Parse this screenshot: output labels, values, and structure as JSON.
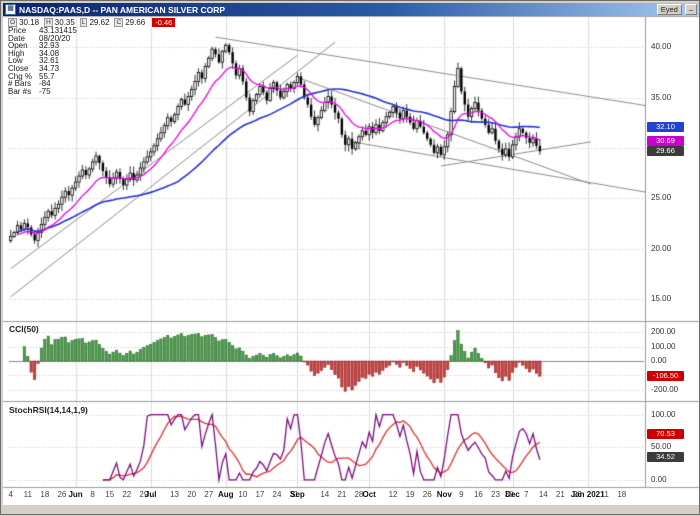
{
  "window": {
    "title": "NASDAQ:PAAS,D -- PAN AMERICAN SILVER CORP",
    "controls": [
      {
        "label": "Eyed"
      },
      {
        "label": "–"
      }
    ]
  },
  "quote_panel": {
    "ohlc": [
      {
        "k": "O",
        "v": "30.18"
      },
      {
        "k": "H",
        "v": "30.35"
      },
      {
        "k": "L",
        "v": "29.62"
      },
      {
        "k": "C",
        "v": "29.66"
      }
    ],
    "change": "-0.46",
    "rows": [
      {
        "label": "Price",
        "value": "43.131415"
      },
      {
        "label": "Date",
        "value": "08/20/20"
      },
      {
        "label": "Open",
        "value": "32.93"
      },
      {
        "label": "High",
        "value": "34.08"
      },
      {
        "label": "Low",
        "value": "32.61"
      },
      {
        "label": "Close",
        "value": "34.73"
      },
      {
        "label": "Chg %",
        "value": "55.7"
      },
      {
        "label": "# Bars",
        "value": "-84"
      },
      {
        "label": "Bar #s",
        "value": "-75"
      }
    ]
  },
  "panels": {
    "price": {
      "axis_labels": [
        {
          "text": "40.00",
          "value": 40
        },
        {
          "text": "35.00",
          "value": 35
        },
        {
          "text": "30.00",
          "value": 30
        },
        {
          "text": "25.00",
          "value": 25
        },
        {
          "text": "20.00",
          "value": 20
        },
        {
          "text": "15.00",
          "value": 15
        }
      ],
      "badges": [
        {
          "text": "32.10",
          "value": 32.1,
          "color": "#2244cc"
        },
        {
          "text": "30.69",
          "value": 30.69,
          "color": "#cc00cc"
        },
        {
          "text": "29.66",
          "value": 29.66,
          "color": "#3c3c3c"
        }
      ]
    },
    "cci": {
      "label": "CCI(50)",
      "axis_labels": [
        {
          "text": "200.00",
          "value": 200
        },
        {
          "text": "100.00",
          "value": 100
        },
        {
          "text": "0.00",
          "value": 0
        },
        {
          "text": "-100.00",
          "value": -100
        },
        {
          "text": "-200.00",
          "value": -200
        }
      ],
      "badges": [
        {
          "text": "-106.50",
          "value": -106.5,
          "color": "#cc0000"
        }
      ]
    },
    "stoch": {
      "label": "StochRSI(14,14,1,9)",
      "axis_labels": [
        {
          "text": "100.00",
          "value": 100
        },
        {
          "text": "50.00",
          "value": 50
        },
        {
          "text": "0.00",
          "value": 0
        }
      ],
      "badges": [
        {
          "text": "70.53",
          "value": 70.53,
          "color": "#cc0000"
        },
        {
          "text": "34.52",
          "value": 34.52,
          "color": "#3c3c3c"
        }
      ]
    }
  },
  "xaxis": {
    "labels": [
      {
        "text": "4",
        "i": 0
      },
      {
        "text": "11",
        "i": 5
      },
      {
        "text": "18",
        "i": 10
      },
      {
        "text": "26",
        "i": 15
      },
      {
        "text": "Jun",
        "i": 19
      },
      {
        "text": "8",
        "i": 24
      },
      {
        "text": "15",
        "i": 29
      },
      {
        "text": "22",
        "i": 34
      },
      {
        "text": "29",
        "i": 39
      },
      {
        "text": "Jul",
        "i": 41
      },
      {
        "text": "13",
        "i": 48
      },
      {
        "text": "20",
        "i": 53
      },
      {
        "text": "27",
        "i": 58
      },
      {
        "text": "Aug",
        "i": 63
      },
      {
        "text": "10",
        "i": 68
      },
      {
        "text": "17",
        "i": 73
      },
      {
        "text": "24",
        "i": 78
      },
      {
        "text": "31",
        "i": 83
      },
      {
        "text": "Sep",
        "i": 84
      },
      {
        "text": "14",
        "i": 92
      },
      {
        "text": "21",
        "i": 97
      },
      {
        "text": "28",
        "i": 102
      },
      {
        "text": "Oct",
        "i": 105
      },
      {
        "text": "12",
        "i": 112
      },
      {
        "text": "19",
        "i": 117
      },
      {
        "text": "26",
        "i": 122
      },
      {
        "text": "Nov",
        "i": 127
      },
      {
        "text": "9",
        "i": 132
      },
      {
        "text": "16",
        "i": 137
      },
      {
        "text": "23",
        "i": 142
      },
      {
        "text": "30",
        "i": 146
      },
      {
        "text": "Dec",
        "i": 147
      },
      {
        "text": "7",
        "i": 151
      },
      {
        "text": "14",
        "i": 156
      },
      {
        "text": "21",
        "i": 161
      },
      {
        "text": "28",
        "i": 166
      },
      {
        "text": "Jan 2021",
        "i": 169
      },
      {
        "text": "11",
        "i": 174
      },
      {
        "text": "18",
        "i": 179
      }
    ]
  },
  "chart_data": {
    "type": "candlestick",
    "symbol": "NASDAQ:PAAS",
    "timeframe": "D",
    "company": "PAN AMERICAN SILVER CORP",
    "x_range": [
      "2020-05-04",
      "2021-01-18"
    ],
    "timeline_slots": 186,
    "month_ticks": [
      19,
      41,
      63,
      84,
      105,
      127,
      147,
      169
    ],
    "price_panel": {
      "ylim": [
        13,
        43
      ],
      "gridlines": [
        15,
        20,
        25,
        30,
        35,
        40
      ],
      "last_close": 29.66,
      "closes": [
        21.2,
        21.6,
        22.3,
        21.9,
        22.5,
        22.1,
        21.4,
        20.8,
        21.6,
        22.4,
        23.1,
        23.7,
        23.3,
        24.0,
        24.4,
        25.1,
        25.7,
        25.3,
        26.0,
        26.6,
        27.2,
        27.8,
        27.3,
        27.9,
        28.6,
        29.2,
        28.5,
        27.7,
        27.1,
        26.4,
        27.0,
        27.6,
        26.9,
        26.3,
        26.9,
        27.5,
        26.8,
        27.3,
        28.0,
        28.6,
        29.1,
        29.6,
        30.2,
        30.9,
        31.5,
        32.2,
        33.0,
        32.6,
        33.3,
        34.1,
        34.8,
        34.3,
        35.1,
        35.8,
        36.6,
        37.5,
        36.9,
        38.1,
        38.9,
        39.8,
        39.3,
        38.5,
        39.6,
        40.2,
        39.5,
        38.4,
        37.2,
        37.9,
        36.6,
        35.0,
        33.6,
        34.7,
        35.3,
        36.1,
        35.5,
        34.7,
        35.9,
        36.5,
        35.7,
        35.0,
        35.6,
        36.3,
        35.9,
        36.5,
        37.1,
        36.3,
        35.0,
        34.3,
        33.1,
        32.3,
        33.0,
        33.7,
        34.5,
        35.1,
        34.3,
        33.5,
        32.9,
        31.3,
        30.3,
        30.9,
        29.9,
        30.5,
        31.1,
        31.7,
        31.3,
        32.1,
        31.5,
        32.3,
        31.7,
        32.5,
        33.1,
        33.5,
        34.1,
        33.5,
        32.9,
        33.7,
        33.1,
        32.5,
        31.9,
        32.7,
        32.1,
        31.5,
        30.9,
        30.3,
        29.5,
        30.1,
        29.3,
        30.1,
        31.3,
        33.6,
        36.1,
        37.9,
        35.6,
        34.3,
        33.1,
        33.9,
        34.5,
        33.7,
        32.9,
        32.3,
        31.5,
        31.9,
        30.7,
        29.9,
        29.3,
        29.9,
        29.1,
        30.3,
        31.1,
        31.9,
        31.5,
        31.0,
        30.5,
        30.9,
        30.2,
        29.66
      ],
      "ma_fast": {
        "period": 13,
        "color": "#ee00ee",
        "last": 30.69
      },
      "ma_slow": {
        "period": 50,
        "color": "#2233cc",
        "last": 32.1
      },
      "trendlines": [
        [
          0,
          15.2,
          95,
          40.5
        ],
        [
          0,
          18.0,
          84,
          39.2
        ],
        [
          60,
          41.0,
          186,
          34.2
        ],
        [
          84,
          37.0,
          170,
          26.4
        ],
        [
          100,
          30.6,
          186,
          25.6
        ],
        [
          126,
          28.2,
          170,
          30.6
        ]
      ]
    },
    "cci_panel": {
      "indicator": "CCI",
      "period": 50,
      "ylim": [
        -265,
        265
      ],
      "gridlines": [
        200,
        100,
        -100,
        -200
      ],
      "last": -106.5,
      "pos_color": "#4e9a4e",
      "neg_color": "#c94040"
    },
    "stoch_panel": {
      "indicator": "StochRSI",
      "params": [
        14,
        14,
        1,
        9
      ],
      "ylim": [
        -8,
        118
      ],
      "gridlines": [
        100,
        50,
        0
      ],
      "last": 34.52,
      "signal_last": 70.53,
      "line_color": "#7d0f7d",
      "signal_color": "#e03030"
    }
  }
}
